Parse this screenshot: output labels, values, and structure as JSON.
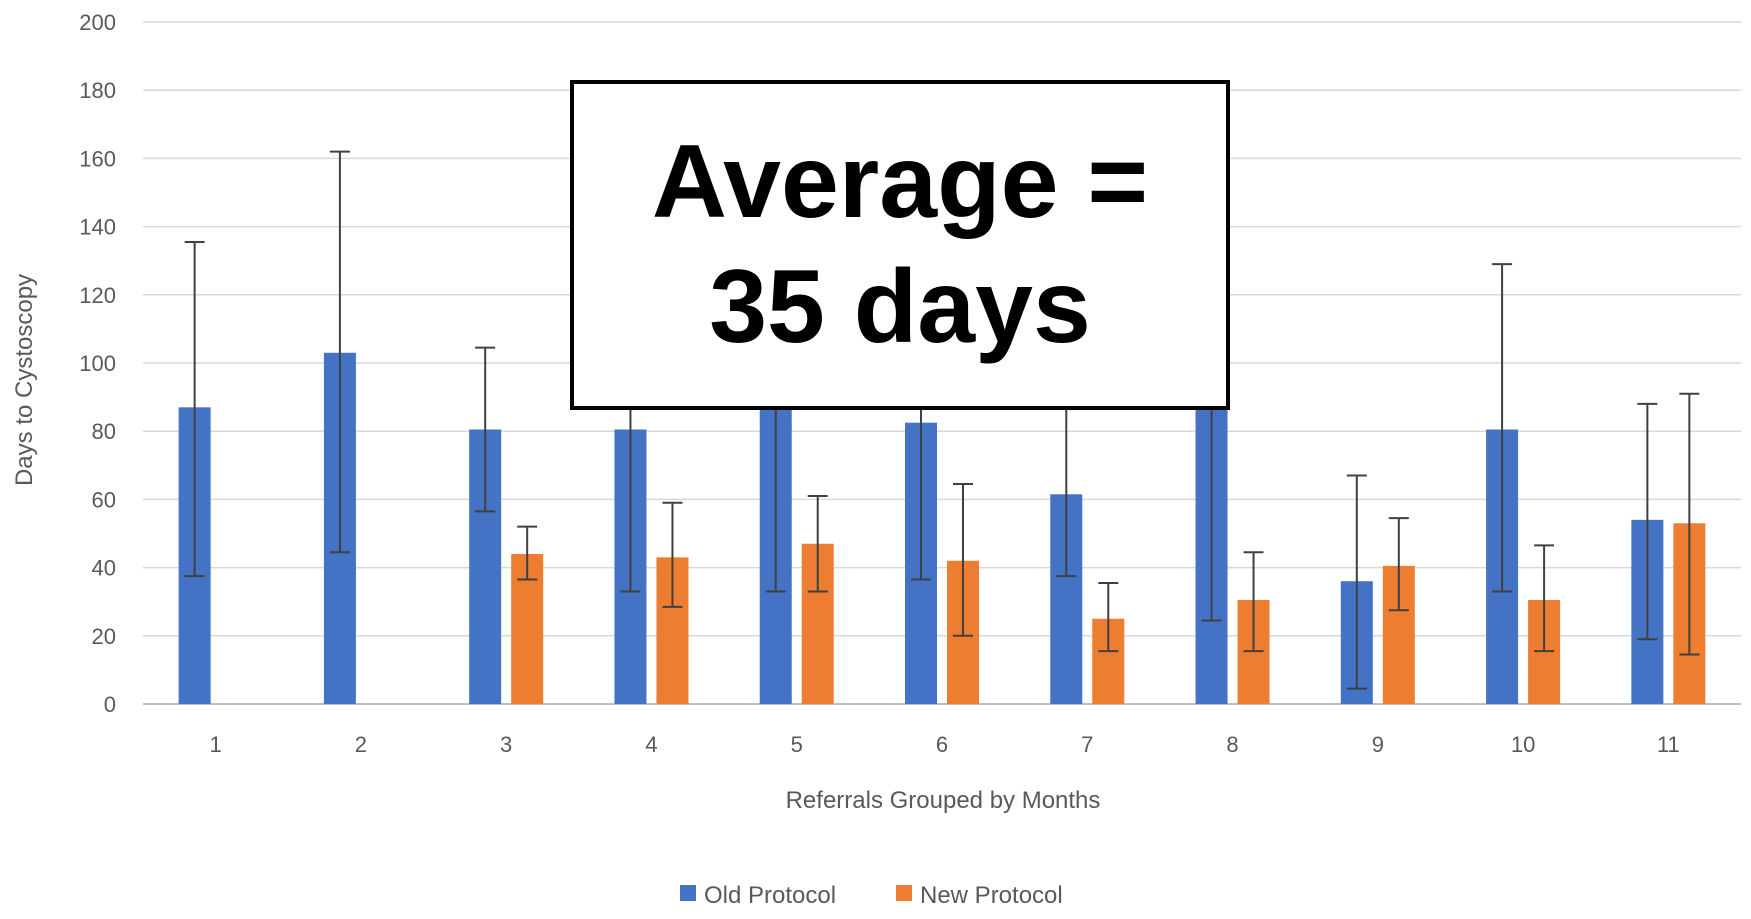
{
  "chart_data": {
    "type": "bar",
    "categories": [
      "1",
      "2",
      "3",
      "4",
      "5",
      "6",
      "7",
      "8",
      "9",
      "10",
      "11"
    ],
    "xlabel": "Referrals Grouped by Months",
    "ylabel": "Days to Cystoscopy",
    "ylim": [
      0,
      200
    ],
    "yticks": [
      0,
      20,
      40,
      60,
      80,
      100,
      120,
      140,
      160,
      180,
      200
    ],
    "grid": true,
    "legend_position": "bottom",
    "series": [
      {
        "name": "Old Protocol",
        "color": "#4472C4",
        "values": [
          87,
          103,
          80.5,
          80.5,
          93,
          82.5,
          61.5,
          91,
          36,
          80.5,
          54
        ],
        "error_low": [
          37.5,
          44.5,
          56.5,
          33,
          33,
          36.5,
          37.5,
          24.5,
          4.5,
          33,
          19
        ],
        "error_high": [
          135.5,
          162,
          104.5,
          93,
          93,
          93,
          93,
          93,
          67,
          129,
          88
        ]
      },
      {
        "name": "New Protocol",
        "color": "#ED7D31",
        "values": [
          null,
          null,
          44,
          43,
          47,
          42,
          25,
          30.5,
          40.5,
          30.5,
          53
        ],
        "error_low": [
          null,
          null,
          36.5,
          28.5,
          33,
          20,
          15.5,
          15.5,
          27.5,
          15.5,
          14.5
        ],
        "error_high": [
          null,
          null,
          52,
          59,
          61,
          64.5,
          35.5,
          44.5,
          54.5,
          46.5,
          91
        ]
      }
    ],
    "annotation": {
      "line1": "Average =",
      "line2": "35 days"
    }
  }
}
